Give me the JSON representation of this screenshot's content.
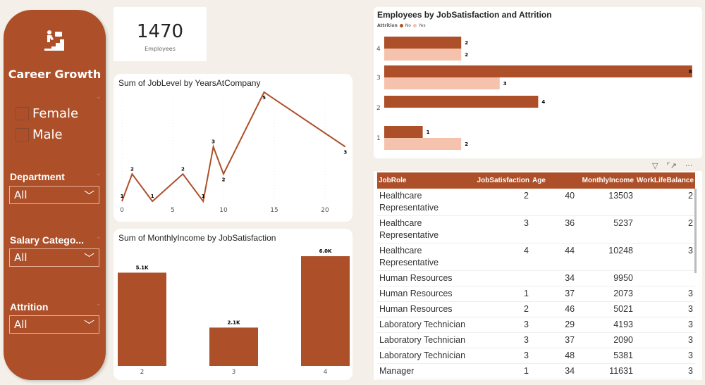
{
  "sidebar": {
    "title": "Career Growth",
    "icon": "career-stairs-icon",
    "gender_options": [
      "Female",
      "Male"
    ],
    "filters": [
      {
        "label": "Department",
        "value": "All"
      },
      {
        "label": "Salary Catego...",
        "value": "All"
      },
      {
        "label": "Attrition",
        "value": "All"
      }
    ]
  },
  "kpi": {
    "value": "1470",
    "label": "Employees"
  },
  "colors": {
    "primary": "#ad502a",
    "secondary": "#f5c3ad",
    "background": "#f4f0e9"
  },
  "chart_data": [
    {
      "type": "line",
      "title": "Sum of JobLevel by YearsAtCompany",
      "x": [
        0,
        1,
        3,
        6,
        8,
        9,
        10,
        14,
        22
      ],
      "y": [
        1,
        2,
        1,
        2,
        1,
        3,
        2,
        5,
        3
      ],
      "xticks": [
        "0",
        "5",
        "10",
        "15",
        "20"
      ],
      "xlim": [
        0,
        22
      ],
      "color": "#ad502a"
    },
    {
      "type": "bar",
      "title": "Sum of MonthlyIncome by JobSatisfaction",
      "categories": [
        "2",
        "3",
        "4"
      ],
      "values": [
        5100,
        2100,
        6000
      ],
      "labels": [
        "5.1K",
        "2.1K",
        "6.0K"
      ],
      "color": "#ad502a"
    },
    {
      "type": "bar",
      "orientation": "horizontal",
      "title": "Employees by JobSatisfaction and Attrition",
      "legend_title": "Attrition",
      "legend": "top-left",
      "categories": [
        "4",
        "3",
        "2",
        "1"
      ],
      "series": [
        {
          "name": "No",
          "values": [
            2,
            8,
            4,
            1
          ],
          "color": "#ad502a"
        },
        {
          "name": "Yes",
          "values": [
            2,
            3,
            null,
            2
          ],
          "color": "#f5c3ad"
        }
      ]
    }
  ],
  "table": {
    "columns": [
      "JobRole",
      "JobSatisfaction",
      "Age",
      "MonthlyIncome",
      "WorkLifeBalance"
    ],
    "rows": [
      [
        "Healthcare Representative",
        "2",
        "40",
        "13503",
        "2"
      ],
      [
        "Healthcare Representative",
        "3",
        "36",
        "5237",
        "2"
      ],
      [
        "Healthcare Representative",
        "4",
        "44",
        "10248",
        "3"
      ],
      [
        "Human Resources",
        "",
        "34",
        "9950",
        ""
      ],
      [
        "Human Resources",
        "1",
        "37",
        "2073",
        "3"
      ],
      [
        "Human Resources",
        "2",
        "46",
        "5021",
        "3"
      ],
      [
        "Laboratory Technician",
        "3",
        "29",
        "4193",
        "3"
      ],
      [
        "Laboratory Technician",
        "3",
        "37",
        "2090",
        "3"
      ],
      [
        "Laboratory Technician",
        "3",
        "48",
        "5381",
        "3"
      ],
      [
        "Manager",
        "1",
        "34",
        "11631",
        "3"
      ]
    ]
  },
  "visual_header_icons": [
    "filter-icon",
    "focus-mode-icon",
    "more-options-icon"
  ]
}
